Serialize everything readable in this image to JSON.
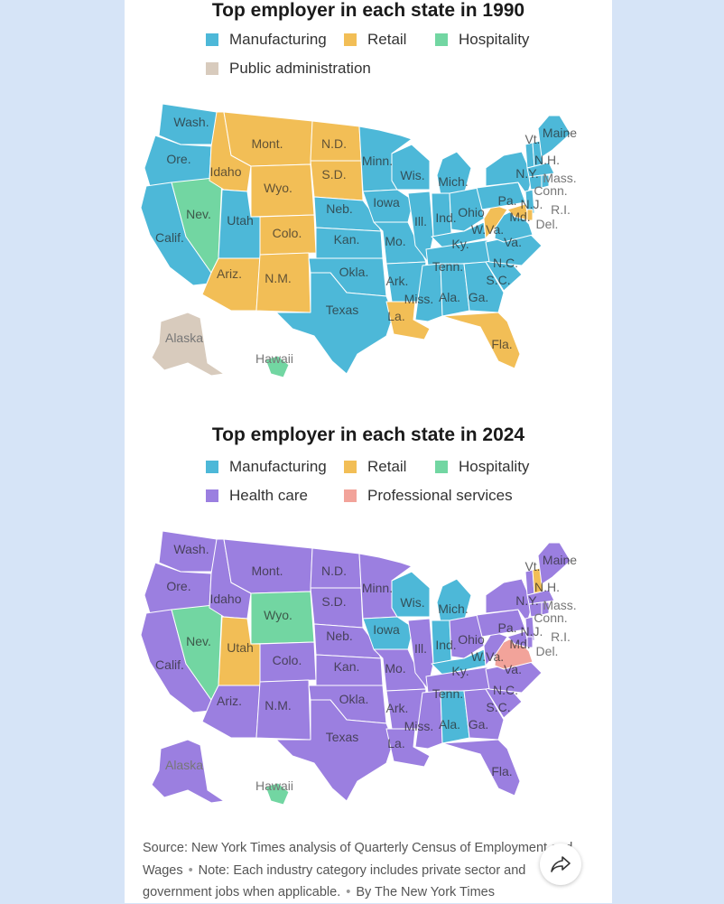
{
  "map1": {
    "title": "Top employer in each state in 1990",
    "legend": [
      {
        "label": "Manufacturing",
        "color": "#4db8d8"
      },
      {
        "label": "Retail",
        "color": "#f2be56"
      },
      {
        "label": "Hospitality",
        "color": "#72d6a2"
      },
      {
        "label": "Public administration",
        "color": "#d8cbbd"
      }
    ]
  },
  "map2": {
    "title": "Top employer in each state in 2024",
    "legend": [
      {
        "label": "Manufacturing",
        "color": "#4db8d8"
      },
      {
        "label": "Retail",
        "color": "#f2be56"
      },
      {
        "label": "Hospitality",
        "color": "#72d6a2"
      },
      {
        "label": "Health care",
        "color": "#9b7fe0"
      },
      {
        "label": "Professional services",
        "color": "#f2a39a"
      }
    ]
  },
  "state_labels": {
    "wa": "Wash.",
    "or": "Ore.",
    "ca": "Calif.",
    "nv": "Nev.",
    "id": "Idaho",
    "mt": "Mont.",
    "wy": "Wyo.",
    "ut": "Utah",
    "co": "Colo.",
    "az": "Ariz.",
    "nm": "N.M.",
    "nd": "N.D.",
    "sd": "S.D.",
    "ne": "Neb.",
    "ks": "Kan.",
    "ok": "Okla.",
    "tx": "Texas",
    "mn": "Minn.",
    "ia": "Iowa",
    "mo": "Mo.",
    "ar": "Ark.",
    "la": "La.",
    "wi": "Wis.",
    "il": "Ill.",
    "ms": "Miss.",
    "mi": "Mich.",
    "in": "Ind.",
    "ky": "Ky.",
    "tn": "Tenn.",
    "al": "Ala.",
    "oh": "Ohio",
    "ga": "Ga.",
    "fl": "Fla.",
    "sc": "S.C.",
    "nc": "N.C.",
    "va": "Va.",
    "wv": "W.Va.",
    "pa": "Pa.",
    "ny": "N.Y.",
    "vt": "Vt.",
    "nh": "N.H.",
    "me": "Maine",
    "ma": "Mass.",
    "ct": "Conn.",
    "ri": "R.I.",
    "nj": "N.J.",
    "de": "Del.",
    "md": "Md.",
    "ak": "Alaska",
    "hi": "Hawaii"
  },
  "source": {
    "text": "Source: New York Times analysis of Quarterly Census of Employment and Wages",
    "note": "Note: Each industry category includes private sector and government jobs when applicable.",
    "byline": "By The New York Times"
  },
  "icons": {
    "share": "share-arrow-icon"
  }
}
